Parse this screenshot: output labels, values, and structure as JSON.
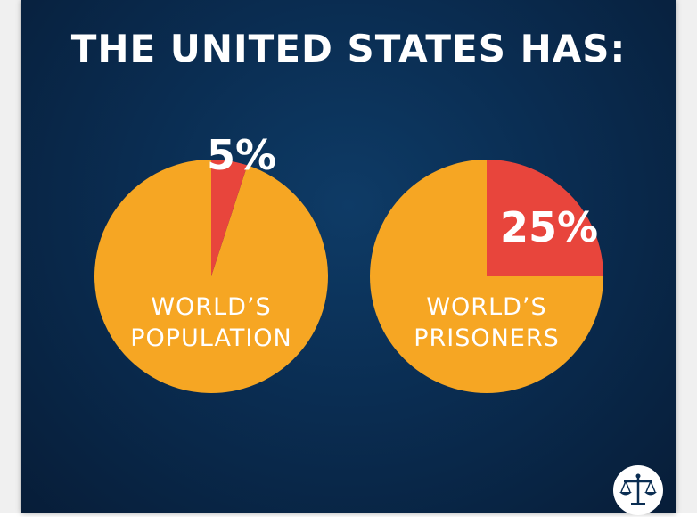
{
  "title": "THE UNITED STATES HAS:",
  "colors": {
    "slice_highlight": "#e8453c",
    "slice_rest": "#f6a623",
    "background": "#0a2d52",
    "text": "#ffffff"
  },
  "logo": {
    "icon": "scales-of-justice-icon"
  },
  "chart_data": [
    {
      "type": "pie",
      "title": "",
      "label_lines": [
        "WORLD’S",
        "POPULATION"
      ],
      "values": [
        5,
        95
      ],
      "value_label": "5%"
    },
    {
      "type": "pie",
      "title": "",
      "label_lines": [
        "WORLD’S",
        "PRISONERS"
      ],
      "values": [
        25,
        75
      ],
      "value_label": "25%"
    }
  ]
}
